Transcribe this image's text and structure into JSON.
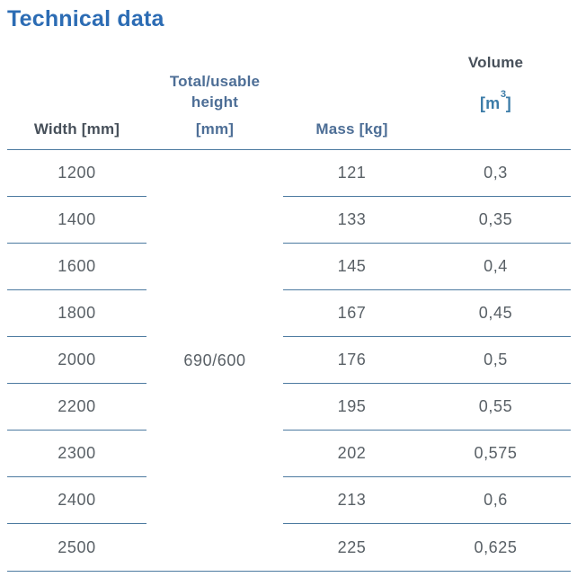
{
  "title": "Technical data",
  "colors": {
    "title": "#2c6cb4",
    "header_dark": "#47505a",
    "header_blue": "#4d6e96",
    "unit_blue": "#3c7ca8",
    "data_text": "#596066",
    "line": "#4c7aa0"
  },
  "table": {
    "headers": {
      "width": "Width [mm]",
      "height_line1": "Total/usable",
      "height_line2": "height",
      "height_unit": "[mm]",
      "mass": "Mass [kg]",
      "volume_label": "Volume",
      "volume_unit_open": "[m",
      "volume_unit_sup": "3",
      "volume_unit_close": "]"
    },
    "merged_height_value": "690/600",
    "rows": [
      {
        "width": "1200",
        "mass": "121",
        "volume": "0,3"
      },
      {
        "width": "1400",
        "mass": "133",
        "volume": "0,35"
      },
      {
        "width": "1600",
        "mass": "145",
        "volume": "0,4"
      },
      {
        "width": "1800",
        "mass": "167",
        "volume": "0,45"
      },
      {
        "width": "2000",
        "mass": "176",
        "volume": "0,5"
      },
      {
        "width": "2200",
        "mass": "195",
        "volume": "0,55"
      },
      {
        "width": "2300",
        "mass": "202",
        "volume": "0,575"
      },
      {
        "width": "2400",
        "mass": "213",
        "volume": "0,6"
      },
      {
        "width": "2500",
        "mass": "225",
        "volume": "0,625"
      }
    ]
  }
}
